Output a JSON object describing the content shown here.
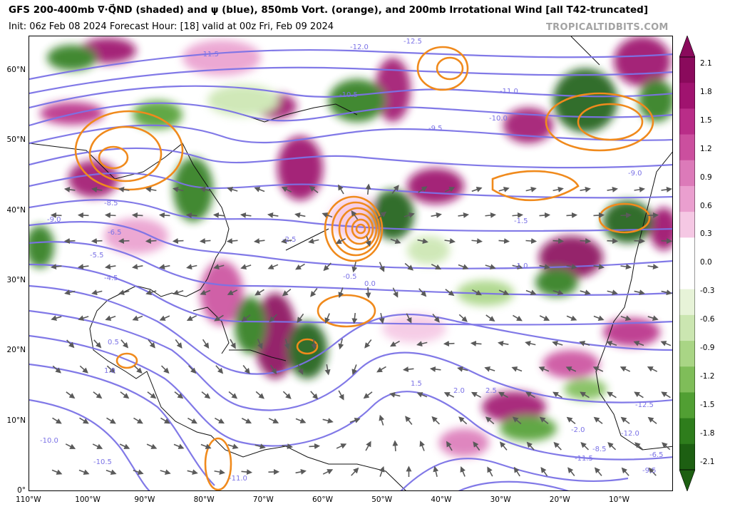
{
  "header": {
    "title": "GFS 200-400mb ∇·Q⃗ND (shaded) and ψ (blue), 850mb Vort. (orange), and 200mb Irrotational Wind [all T42-truncated]",
    "subtitle": "Init: 06z Feb 08 2024   Forecast Hour: [18]   valid at 00z Fri, Feb 09 2024",
    "credit": "TROPICALTIDBITS.COM"
  },
  "map": {
    "region": "North Atlantic / Eastern North America",
    "lat_labels": [
      "60°N",
      "50°N",
      "40°N",
      "30°N",
      "20°N",
      "10°N",
      "0°"
    ],
    "lon_labels": [
      "110°W",
      "100°W",
      "90°W",
      "80°W",
      "70°W",
      "60°W",
      "50°W",
      "40°W",
      "30°W",
      "20°W",
      "10°W"
    ],
    "streamfunction_labels": [
      "-12.5",
      "-12.0",
      "-11.5",
      "-11.0",
      "-10.5",
      "-10.0",
      "-9.5",
      "-9.0",
      "-8.5",
      "-6.5",
      "-5.5",
      "-4.5",
      "-2.5",
      "-1.5",
      "-1.0",
      "-0.5",
      "0.0",
      "0.5",
      "1.0",
      "1.5",
      "2.0",
      "2.5",
      "-2.0"
    ],
    "colors": {
      "streamfunction": "#7b72e6",
      "vorticity": "#f08a1c",
      "wind_arrows": "#5a5a5a",
      "divergence_positive": "#9b0a6a",
      "divergence_negative": "#2f6e18"
    }
  },
  "colorbar": {
    "ticks": [
      "2.1",
      "1.8",
      "1.5",
      "1.2",
      "0.9",
      "0.6",
      "0.3",
      "0.0",
      "-0.3",
      "-0.6",
      "-0.9",
      "-1.2",
      "-1.5",
      "-1.8",
      "-2.1"
    ],
    "colors": [
      "#8a0a5c",
      "#a0136f",
      "#b92d88",
      "#cb4f9e",
      "#dc7ab9",
      "#ea9fcf",
      "#f5c8e4",
      "#ffffff",
      "#ffffff",
      "#e7f3d8",
      "#cbe6b1",
      "#a9d585",
      "#7fbd59",
      "#519f33",
      "#2e7d1c",
      "#1d5f12"
    ]
  }
}
